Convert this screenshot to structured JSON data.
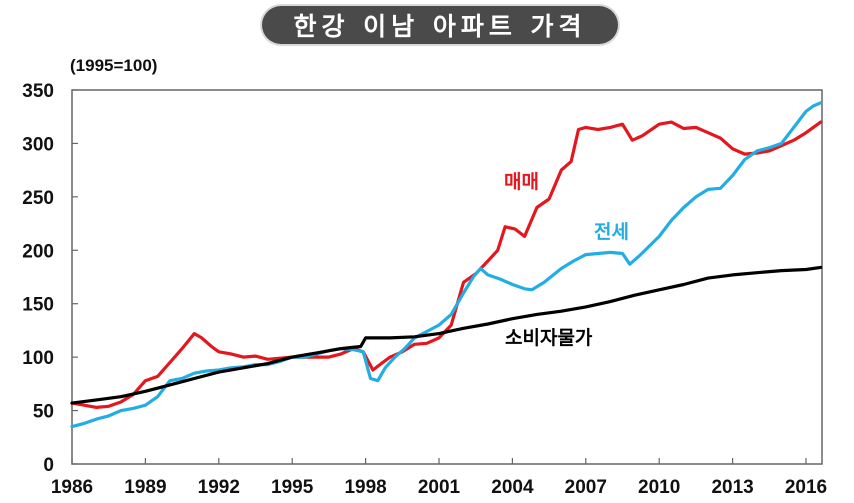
{
  "title": "한강 이남 아파트 가격",
  "unit_label": "(1995=100)",
  "labels": {
    "sale": "매매",
    "jeonse": "전세",
    "cpi": "소비자물가"
  },
  "colors": {
    "sale": "#e3171d",
    "jeonse": "#23aee3",
    "cpi": "#000000",
    "title_bg": "#4a4a4a",
    "axis": "#666666"
  },
  "chart_data": {
    "type": "line",
    "title": "한강 이남 아파트 가격",
    "subtitle": "(1995=100)",
    "xlabel": "",
    "ylabel": "",
    "xlim": [
      1986,
      2016.65
    ],
    "ylim": [
      0,
      350
    ],
    "x_ticks": [
      1986,
      1989,
      1992,
      1995,
      1998,
      2001,
      2004,
      2007,
      2010,
      2013,
      2016
    ],
    "y_ticks": [
      0,
      50,
      100,
      150,
      200,
      250,
      300,
      350
    ],
    "grid": false,
    "legend_position": "inline labels",
    "series": [
      {
        "name": "매매",
        "color": "#e3171d",
        "x": [
          1986,
          1986.5,
          1987,
          1987.5,
          1988,
          1988.5,
          1989,
          1989.5,
          1990,
          1990.5,
          1991,
          1991.3,
          1991.7,
          1992,
          1992.5,
          1993,
          1993.5,
          1994,
          1994.5,
          1995,
          1995.5,
          1996,
          1996.5,
          1997,
          1997.5,
          1997.9,
          1998.3,
          1998.7,
          1999,
          1999.5,
          2000,
          2000.5,
          2001,
          2001.5,
          2002,
          2002.5,
          2003,
          2003.4,
          2003.7,
          2004.1,
          2004.5,
          2005,
          2005.5,
          2006,
          2006.4,
          2006.7,
          2007,
          2007.5,
          2008,
          2008.5,
          2008.9,
          2009.3,
          2010,
          2010.5,
          2011,
          2011.5,
          2012,
          2012.5,
          2013,
          2013.5,
          2014,
          2014.5,
          2015,
          2015.5,
          2016,
          2016.3,
          2016.6
        ],
        "values": [
          57,
          55,
          53,
          54,
          58,
          65,
          78,
          82,
          95,
          108,
          122,
          118,
          110,
          105,
          103,
          100,
          101,
          98,
          99,
          100,
          100,
          100,
          100,
          103,
          108,
          105,
          88,
          95,
          100,
          105,
          112,
          113,
          118,
          130,
          170,
          178,
          190,
          200,
          222,
          220,
          213,
          240,
          248,
          275,
          283,
          313,
          315,
          313,
          315,
          318,
          303,
          307,
          318,
          320,
          314,
          315,
          310,
          305,
          295,
          290,
          291,
          293,
          298,
          303,
          310,
          315,
          320
        ]
      },
      {
        "name": "전세",
        "color": "#23aee3",
        "x": [
          1986,
          1986.5,
          1987,
          1987.5,
          1988,
          1988.5,
          1989,
          1989.5,
          1990,
          1990.5,
          1991,
          1991.5,
          1992,
          1992.5,
          1993,
          1993.5,
          1994,
          1994.5,
          1995,
          1995.5,
          1996,
          1996.5,
          1997,
          1997.5,
          1997.9,
          1998.2,
          1998.5,
          1998.8,
          1999.2,
          1999.6,
          2000,
          2000.5,
          2001,
          2001.5,
          2002,
          2002.4,
          2002.7,
          2003,
          2003.5,
          2004,
          2004.5,
          2004.8,
          2005.3,
          2006,
          2006.5,
          2007,
          2007.5,
          2008,
          2008.5,
          2008.8,
          2009.2,
          2010,
          2010.5,
          2011,
          2011.5,
          2012,
          2012.5,
          2013,
          2013.5,
          2014,
          2014.5,
          2015,
          2015.5,
          2016,
          2016.3,
          2016.6
        ],
        "values": [
          35,
          38,
          42,
          45,
          50,
          52,
          55,
          63,
          78,
          80,
          85,
          87,
          88,
          90,
          91,
          93,
          93,
          96,
          100,
          100,
          103,
          106,
          108,
          107,
          105,
          80,
          78,
          90,
          100,
          108,
          118,
          124,
          130,
          140,
          160,
          175,
          183,
          177,
          173,
          168,
          164,
          163,
          170,
          183,
          190,
          196,
          197,
          198,
          197,
          187,
          195,
          213,
          228,
          240,
          250,
          257,
          258,
          270,
          285,
          293,
          296,
          300,
          315,
          330,
          335,
          338
        ]
      },
      {
        "name": "소비자물가",
        "color": "#000000",
        "x": [
          1986,
          1987,
          1988,
          1989,
          1990,
          1991,
          1992,
          1993,
          1994,
          1995,
          1996,
          1997,
          1997.8,
          1998,
          1999,
          2000,
          2001,
          2002,
          2003,
          2004,
          2005,
          2006,
          2007,
          2008,
          2009,
          2010,
          2011,
          2012,
          2013,
          2014,
          2015,
          2016,
          2016.6
        ],
        "values": [
          57,
          60,
          63,
          68,
          74,
          80,
          86,
          90,
          94,
          100,
          104,
          108,
          110,
          118,
          118,
          119,
          122,
          127,
          131,
          136,
          140,
          143,
          147,
          152,
          158,
          163,
          168,
          174,
          177,
          179,
          181,
          182,
          184
        ]
      }
    ]
  }
}
